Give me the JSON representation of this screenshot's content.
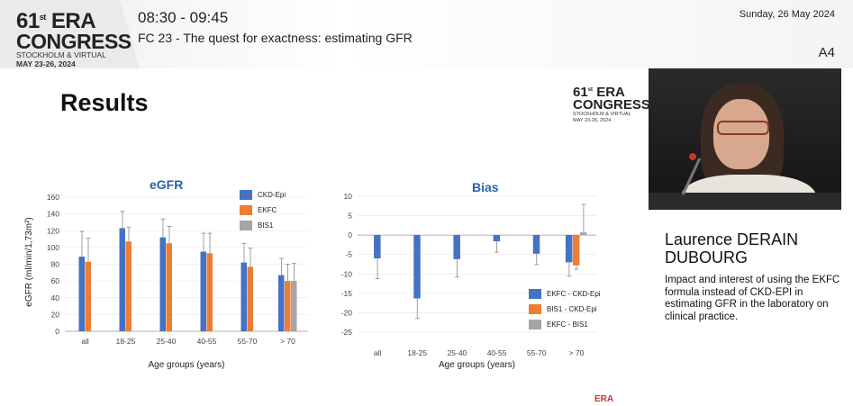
{
  "header": {
    "logo": {
      "line1": "61",
      "line1_sup": "st",
      "line1_b": "ERA",
      "line2": "CONGRESS",
      "line3": "STOCKHOLM & VIRTUAL",
      "line4": "MAY 23-26, 2024"
    },
    "time": "08:30 - 09:45",
    "session": "FC 23 - The quest for exactness: estimating GFR",
    "date": "Sunday, 26 May 2024",
    "room": "A4"
  },
  "slide": {
    "title": "Results",
    "logo": {
      "line1": "61",
      "line1_sup": "st",
      "line1_b": "ERA",
      "line2": "CONGRESS",
      "line3": "STOCKHOLM & VIRTUAL",
      "line4": "MAY 23-26, 2024"
    }
  },
  "speaker": {
    "name_line1": "Laurence DERAIN",
    "name_line2": "DUBOURG",
    "talk_title": "Impact and interest of using the EKFC formula instead of CKD-EPI in estimating GFR in the laboratory on clinical practice."
  },
  "footer": {
    "logo_text": "ERA"
  },
  "colors": {
    "blue": "#4472c4",
    "orange": "#ed7d31",
    "gray": "#a5a5a5"
  },
  "chart_data": [
    {
      "type": "bar",
      "title": "eGFR",
      "ylabel": "eGFR (ml/min/1,73m²)",
      "xlabel": "Age groups (years)",
      "ylim": [
        0,
        160
      ],
      "yticks": [
        "0",
        "20",
        "40",
        "60",
        "80",
        "100",
        "120",
        "140",
        "160"
      ],
      "categories": [
        "all",
        "18-25",
        "25-40",
        "40-55",
        "55-70",
        "> 70"
      ],
      "legend_position": "top-right",
      "series": [
        {
          "name": "CKD-Epi",
          "values": [
            89,
            123,
            112,
            95,
            82,
            67
          ],
          "errors": [
            30,
            20,
            22,
            22,
            23,
            20
          ]
        },
        {
          "name": "EKFC",
          "values": [
            83,
            107,
            105,
            93,
            77,
            60
          ],
          "errors": [
            28,
            17,
            20,
            24,
            22,
            20
          ]
        },
        {
          "name": "BIS1",
          "values": [
            null,
            null,
            null,
            null,
            null,
            60
          ],
          "errors": [
            null,
            null,
            null,
            null,
            null,
            21
          ]
        }
      ]
    },
    {
      "type": "bar",
      "title": "Bias",
      "ylabel": "",
      "xlabel": "Age groups (years)",
      "ylim": [
        -25,
        10
      ],
      "yticks": [
        "-25",
        "-20",
        "-15",
        "-10",
        "-5",
        "0",
        "5",
        "10"
      ],
      "categories": [
        "all",
        "18-25",
        "25-40",
        "40-55",
        "55-70",
        "> 70"
      ],
      "legend_position": "bottom-right",
      "series": [
        {
          "name": "EKFC - CKD-Epi",
          "values": [
            -6,
            -16.3,
            -6.2,
            -1.6,
            -4.8,
            -7
          ],
          "errors": [
            5.2,
            5.2,
            4.6,
            2.8,
            2.8,
            3.6
          ]
        },
        {
          "name": "BIS1 - CKD-Epi",
          "values": [
            null,
            null,
            null,
            null,
            null,
            -7.8
          ],
          "errors": [
            null,
            null,
            null,
            null,
            null,
            1
          ]
        },
        {
          "name": "EKFC - BIS1",
          "values": [
            null,
            null,
            null,
            null,
            null,
            0.7
          ],
          "errors": [
            null,
            null,
            null,
            null,
            null,
            7.2
          ]
        }
      ]
    }
  ]
}
